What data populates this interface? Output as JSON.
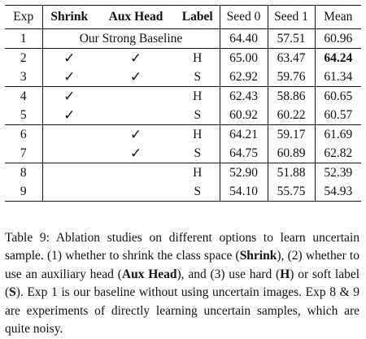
{
  "table": {
    "headers": [
      "Exp",
      "Shrink",
      "Aux Head",
      "Label",
      "Seed 0",
      "Seed 1",
      "Mean"
    ],
    "check_mark": "✓",
    "rows": [
      {
        "exp": "1",
        "shrink": "",
        "aux": "",
        "label": "",
        "baseline": "Our Strong Baseline",
        "seed0": "64.40",
        "seed1": "57.51",
        "mean": "60.96"
      },
      {
        "exp": "2",
        "shrink": "✓",
        "aux": "✓",
        "label": "H",
        "seed0": "65.00",
        "seed1": "63.47",
        "mean": "64.24",
        "mean_bold": true
      },
      {
        "exp": "3",
        "shrink": "✓",
        "aux": "✓",
        "label": "S",
        "seed0": "62.92",
        "seed1": "59.76",
        "mean": "61.34"
      },
      {
        "exp": "4",
        "shrink": "✓",
        "aux": "",
        "label": "H",
        "seed0": "62.43",
        "seed1": "58.86",
        "mean": "60.65"
      },
      {
        "exp": "5",
        "shrink": "✓",
        "aux": "",
        "label": "S",
        "seed0": "60.92",
        "seed1": "60.22",
        "mean": "60.57"
      },
      {
        "exp": "6",
        "shrink": "",
        "aux": "✓",
        "label": "H",
        "seed0": "64.21",
        "seed1": "59.17",
        "mean": "61.69"
      },
      {
        "exp": "7",
        "shrink": "",
        "aux": "✓",
        "label": "S",
        "seed0": "64.75",
        "seed1": "60.89",
        "mean": "62.82"
      },
      {
        "exp": "8",
        "shrink": "",
        "aux": "",
        "label": "H",
        "seed0": "52.90",
        "seed1": "51.88",
        "mean": "52.39"
      },
      {
        "exp": "9",
        "shrink": "",
        "aux": "",
        "label": "S",
        "seed0": "54.10",
        "seed1": "55.75",
        "mean": "54.93"
      }
    ]
  },
  "caption": {
    "t1": "Table 9: Ablation studies on different options to learn uncertain sample. (1) whether to shrink the class space (",
    "b1": "Shrink",
    "t2": "), (2) whether to use an auxiliary head (",
    "b2": "Aux Head",
    "t3": "), and (3) use hard (",
    "b3": "H",
    "t4": ") or soft label (",
    "b4": "S",
    "t5": "). Exp 1 is our baseline without using uncertain images. Exp 8 & 9 are experiments of directly learning uncertain samples, which are quite noisy."
  }
}
